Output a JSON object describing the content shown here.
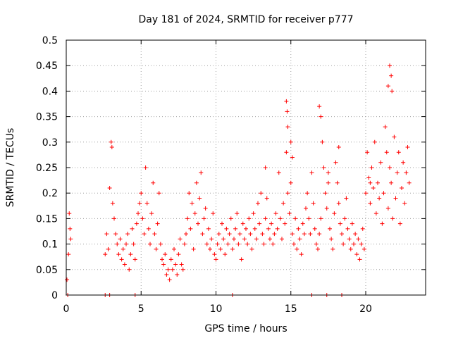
{
  "chart_data": {
    "type": "scatter",
    "title": "Day 181 of 2024, SRMTID for receiver p777",
    "xlabel": "GPS time / hours",
    "ylabel": "SRMTID / TECUs",
    "xlim": [
      0,
      24
    ],
    "ylim": [
      0,
      0.5
    ],
    "x_ticks": [
      0,
      5,
      10,
      15,
      20
    ],
    "y_ticks": [
      0,
      0.05,
      0.1,
      0.15,
      0.2,
      0.25,
      0.3,
      0.35,
      0.4,
      0.45,
      0.5
    ],
    "x_tick_labels": [
      "0",
      "5",
      "10",
      "15",
      "20"
    ],
    "y_tick_labels": [
      "0",
      "0.05",
      "0.1",
      "0.15",
      "0.2",
      "0.25",
      "0.3",
      "0.35",
      "0.4",
      "0.45",
      "0.5"
    ],
    "grid": true,
    "marker": "+",
    "marker_color": "#ff0000",
    "series": [
      {
        "name": "SRMTID",
        "x": [
          0.05,
          0.15,
          0.2,
          0.25,
          0.3,
          2.6,
          2.7,
          2.8,
          2.9,
          3.0,
          3.05,
          3.1,
          3.2,
          3.3,
          3.4,
          3.5,
          3.6,
          3.7,
          3.8,
          3.9,
          4.0,
          4.1,
          4.2,
          4.3,
          4.4,
          4.5,
          4.6,
          4.7,
          4.8,
          4.9,
          5.0,
          5.1,
          5.2,
          5.3,
          5.4,
          5.5,
          5.6,
          5.7,
          5.8,
          5.9,
          6.0,
          6.1,
          6.2,
          6.3,
          6.4,
          6.5,
          6.6,
          6.7,
          6.8,
          6.9,
          7.0,
          7.1,
          7.2,
          7.3,
          7.4,
          7.5,
          7.6,
          7.7,
          7.8,
          7.9,
          8.0,
          8.1,
          8.2,
          8.3,
          8.4,
          8.5,
          8.6,
          8.7,
          8.8,
          8.9,
          9.0,
          9.1,
          9.2,
          9.3,
          9.4,
          9.5,
          9.6,
          9.7,
          9.8,
          9.9,
          10.0,
          10.1,
          10.2,
          10.3,
          10.4,
          10.5,
          10.6,
          10.7,
          10.8,
          10.9,
          11.0,
          11.1,
          11.2,
          11.3,
          11.4,
          11.5,
          11.6,
          11.7,
          11.8,
          11.9,
          12.0,
          12.1,
          12.2,
          12.3,
          12.4,
          12.5,
          12.6,
          12.7,
          12.8,
          12.9,
          13.0,
          13.1,
          13.2,
          13.3,
          13.4,
          13.5,
          13.6,
          13.7,
          13.8,
          13.9,
          14.0,
          14.1,
          14.2,
          14.3,
          14.4,
          14.5,
          14.6,
          14.7,
          14.8,
          14.9,
          15.0,
          15.1,
          15.2,
          15.3,
          15.4,
          15.5,
          15.6,
          15.7,
          15.8,
          15.9,
          16.0,
          16.1,
          16.2,
          16.3,
          16.4,
          16.5,
          16.6,
          16.7,
          16.8,
          16.9,
          17.0,
          17.1,
          17.2,
          17.3,
          17.4,
          17.5,
          17.6,
          17.7,
          17.8,
          17.9,
          18.0,
          18.1,
          18.2,
          18.3,
          18.4,
          18.5,
          18.6,
          18.7,
          18.8,
          18.9,
          19.0,
          19.1,
          19.2,
          19.3,
          19.4,
          19.5,
          19.6,
          19.7,
          19.8,
          19.9,
          20.0,
          20.1,
          20.2,
          20.3,
          20.4,
          20.5,
          20.6,
          20.7,
          20.8,
          20.9,
          21.0,
          21.1,
          21.2,
          21.3,
          21.4,
          21.5,
          21.6,
          21.7,
          21.8,
          21.9,
          22.0,
          22.1,
          22.2,
          22.3,
          22.4,
          22.5,
          22.6,
          22.7,
          22.8,
          22.9,
          14.7,
          14.75,
          14.8,
          16.9,
          17.0,
          21.6,
          21.7,
          21.75,
          21.5,
          15.0,
          15.1,
          13.3,
          18.2,
          20.3,
          17.5,
          0.1,
          2.6,
          2.9,
          4.6,
          11.1,
          16.4,
          17.4,
          18.4
        ],
        "y": [
          0.03,
          0.08,
          0.16,
          0.13,
          0.11,
          0.08,
          0.12,
          0.09,
          0.21,
          0.3,
          0.29,
          0.18,
          0.15,
          0.12,
          0.1,
          0.08,
          0.11,
          0.07,
          0.09,
          0.06,
          0.1,
          0.12,
          0.05,
          0.08,
          0.13,
          0.1,
          0.07,
          0.14,
          0.16,
          0.18,
          0.2,
          0.15,
          0.12,
          0.25,
          0.18,
          0.13,
          0.1,
          0.16,
          0.22,
          0.12,
          0.09,
          0.14,
          0.2,
          0.1,
          0.07,
          0.06,
          0.08,
          0.04,
          0.05,
          0.03,
          0.07,
          0.05,
          0.09,
          0.06,
          0.04,
          0.08,
          0.11,
          0.06,
          0.05,
          0.1,
          0.12,
          0.15,
          0.2,
          0.13,
          0.18,
          0.09,
          0.16,
          0.22,
          0.14,
          0.19,
          0.24,
          0.12,
          0.15,
          0.17,
          0.1,
          0.13,
          0.09,
          0.11,
          0.16,
          0.08,
          0.07,
          0.1,
          0.12,
          0.09,
          0.14,
          0.11,
          0.08,
          0.13,
          0.1,
          0.12,
          0.15,
          0.09,
          0.11,
          0.13,
          0.16,
          0.1,
          0.12,
          0.07,
          0.14,
          0.11,
          0.13,
          0.1,
          0.15,
          0.12,
          0.09,
          0.16,
          0.13,
          0.11,
          0.18,
          0.14,
          0.2,
          0.12,
          0.1,
          0.15,
          0.19,
          0.13,
          0.11,
          0.14,
          0.1,
          0.12,
          0.16,
          0.13,
          0.24,
          0.15,
          0.11,
          0.18,
          0.14,
          0.28,
          0.2,
          0.16,
          0.22,
          0.12,
          0.1,
          0.15,
          0.09,
          0.13,
          0.11,
          0.08,
          0.14,
          0.12,
          0.17,
          0.2,
          0.15,
          0.12,
          0.24,
          0.18,
          0.13,
          0.1,
          0.09,
          0.12,
          0.15,
          0.3,
          0.25,
          0.2,
          0.17,
          0.22,
          0.13,
          0.11,
          0.09,
          0.16,
          0.26,
          0.22,
          0.18,
          0.14,
          0.12,
          0.1,
          0.15,
          0.19,
          0.13,
          0.11,
          0.09,
          0.14,
          0.1,
          0.12,
          0.08,
          0.11,
          0.07,
          0.1,
          0.13,
          0.09,
          0.2,
          0.28,
          0.23,
          0.18,
          0.25,
          0.21,
          0.3,
          0.16,
          0.22,
          0.19,
          0.26,
          0.14,
          0.2,
          0.33,
          0.28,
          0.17,
          0.25,
          0.22,
          0.15,
          0.31,
          0.19,
          0.24,
          0.28,
          0.14,
          0.21,
          0.26,
          0.18,
          0.24,
          0.29,
          0.22,
          0.38,
          0.36,
          0.33,
          0.37,
          0.35,
          0.45,
          0.43,
          0.4,
          0.41,
          0.3,
          0.27,
          0.25,
          0.29,
          0.22,
          0.24,
          0.0,
          0.0,
          0.0,
          0.0,
          0.0,
          0.0,
          0.0,
          0.0
        ]
      }
    ]
  }
}
